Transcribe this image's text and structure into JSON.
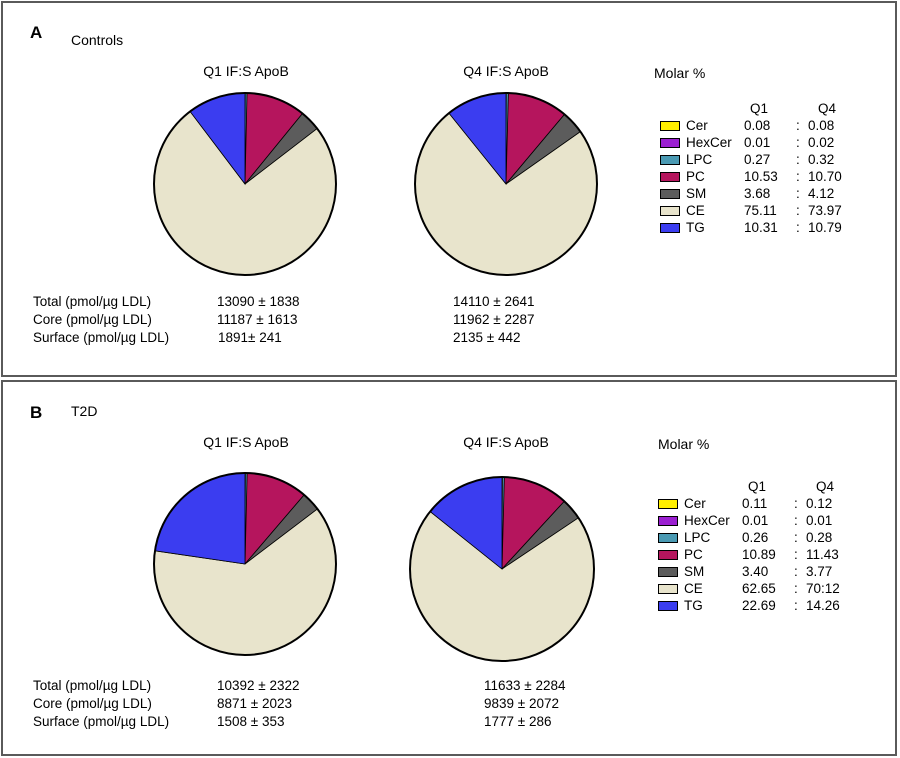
{
  "categories_header": {
    "q1": "Q1",
    "q4": "Q4"
  },
  "chart_data": [
    {
      "type": "pie",
      "panel": "A",
      "group": "Controls",
      "molar_title": "Molar %",
      "pies": [
        {
          "title": "Q1 IF:S ApoB",
          "values": [
            0.08,
            0.01,
            0.27,
            10.53,
            3.68,
            75.11,
            10.31
          ]
        },
        {
          "title": "Q4 IF:S ApoB",
          "values": [
            0.08,
            0.02,
            0.32,
            10.7,
            4.12,
            73.97,
            10.79
          ]
        }
      ],
      "legend": [
        {
          "name": "Cer",
          "color": "#ffef00",
          "q1": "0.08",
          "sep": ":",
          "q4": "0.08"
        },
        {
          "name": "HexCer",
          "color": "#9b1fd1",
          "q1": "0.01",
          "sep": ":",
          "q4": "0.02"
        },
        {
          "name": "LPC",
          "color": "#4a9ab3",
          "q1": "0.27",
          "sep": ":",
          "q4": "0.32"
        },
        {
          "name": "PC",
          "color": "#b5155d",
          "q1": "10.53",
          "sep": ":",
          "q4": "10.70"
        },
        {
          "name": "SM",
          "color": "#5c5c5c",
          "q1": "3.68",
          "sep": ":",
          "q4": "4.12"
        },
        {
          "name": "CE",
          "color": "#e8e4cc",
          "q1": "75.11",
          "sep": ":",
          "q4": "73.97"
        },
        {
          "name": "TG",
          "color": "#3b3df0",
          "q1": "10.31",
          "sep": ":",
          "q4": "10.79"
        }
      ],
      "stats": [
        {
          "label": "Total (pmol/µg LDL)",
          "q1": "13090 ± 1838",
          "q4": "14110 ± 2641"
        },
        {
          "label": "Core (pmol/µg LDL)",
          "q1": "11187 ± 1613",
          "q4": "11962 ± 2287"
        },
        {
          "label": "Surface (pmol/µg LDL)",
          "q1": "1891± 241",
          "q4": "2135 ± 442"
        }
      ]
    },
    {
      "type": "pie",
      "panel": "B",
      "group": "T2D",
      "molar_title": "Molar %",
      "pies": [
        {
          "title": "Q1 IF:S ApoB",
          "values": [
            0.11,
            0.01,
            0.26,
            10.89,
            3.4,
            62.65,
            22.69
          ]
        },
        {
          "title": "Q4 IF:S ApoB",
          "values": [
            0.12,
            0.01,
            0.28,
            11.43,
            3.77,
            70.12,
            14.26
          ]
        }
      ],
      "legend": [
        {
          "name": "Cer",
          "color": "#ffef00",
          "q1": "0.11",
          "sep": ":",
          "q4": "0.12"
        },
        {
          "name": "HexCer",
          "color": "#9b1fd1",
          "q1": "0.01",
          "sep": ":",
          "q4": "0.01"
        },
        {
          "name": "LPC",
          "color": "#4a9ab3",
          "q1": "0.26",
          "sep": ":",
          "q4": "0.28"
        },
        {
          "name": "PC",
          "color": "#b5155d",
          "q1": "10.89",
          "sep": ":",
          "q4": "11.43"
        },
        {
          "name": "SM",
          "color": "#5c5c5c",
          "q1": "3.40",
          "sep": ":",
          "q4": "3.77"
        },
        {
          "name": "CE",
          "color": "#e8e4cc",
          "q1": "62.65",
          "sep": ":",
          "q4": "70:12"
        },
        {
          "name": "TG",
          "color": "#3b3df0",
          "q1": "22.69",
          "sep": ":",
          "q4": "14.26"
        }
      ],
      "stats": [
        {
          "label": "Total (pmol/µg LDL)",
          "q1": "10392 ± 2322",
          "q4": "11633 ± 2284"
        },
        {
          "label": "Core (pmol/µg LDL)",
          "q1": "8871 ± 2023",
          "q4": "9839 ± 2072"
        },
        {
          "label": "Surface (pmol/µg LDL)",
          "q1": "1508 ± 353",
          "q4": "1777 ± 286"
        }
      ]
    }
  ]
}
